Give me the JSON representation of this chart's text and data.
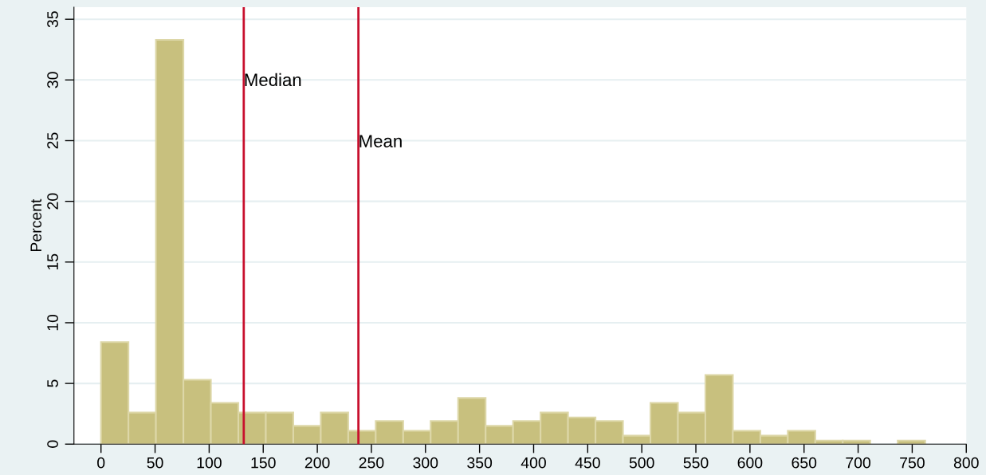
{
  "chart_data": {
    "type": "histogram",
    "ylabel": "Percent",
    "bins": [
      0,
      25.4,
      50.8,
      76.2,
      101.6,
      127,
      152.4,
      177.8,
      203.2,
      228.6,
      254,
      279.4,
      304.8,
      330.2,
      355.6,
      381,
      406.4,
      431.8,
      457.2,
      482.6,
      508,
      533.4,
      558.8,
      584.2,
      609.6,
      635,
      660.4,
      685.8,
      711.2,
      736.6,
      762
    ],
    "values": [
      8.4,
      2.6,
      33.3,
      5.3,
      3.4,
      2.6,
      2.6,
      1.5,
      2.6,
      1.1,
      1.9,
      1.1,
      1.9,
      3.8,
      1.5,
      1.9,
      2.6,
      2.2,
      1.9,
      0.7,
      3.4,
      2.6,
      5.7,
      1.1,
      0.7,
      1.1,
      0.3,
      0.3,
      0,
      0.3
    ],
    "color": "#c8c07e",
    "xlim": [
      -25,
      800
    ],
    "xticks": [
      0,
      50,
      100,
      150,
      200,
      250,
      300,
      350,
      400,
      450,
      500,
      550,
      600,
      650,
      700,
      750,
      800
    ],
    "ylim": [
      0,
      36
    ],
    "yticks": [
      0,
      5,
      10,
      15,
      20,
      25,
      30,
      35
    ],
    "grid": "y",
    "ref_lines": [
      {
        "axis": "x",
        "value": 132,
        "label": "Median",
        "color": "#c8102e"
      },
      {
        "axis": "x",
        "value": 238,
        "label": "Mean",
        "color": "#c8102e"
      }
    ]
  }
}
